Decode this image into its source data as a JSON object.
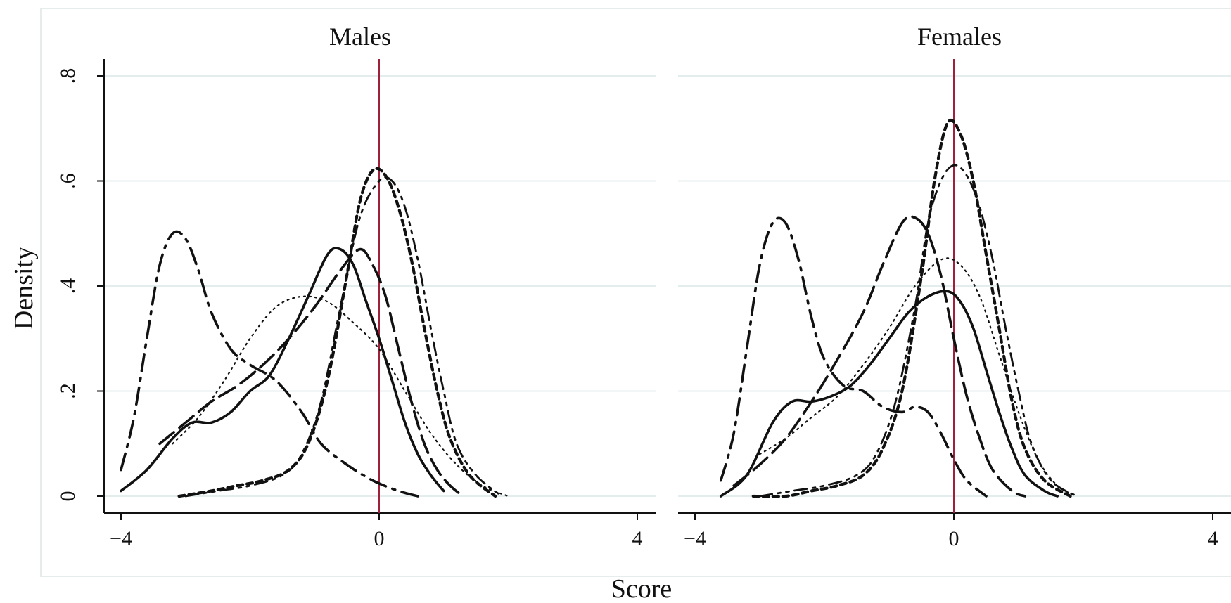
{
  "chart_data": {
    "type": "line",
    "xlabel": "Score",
    "ylabel": "Density",
    "xlim": [
      -4,
      4
    ],
    "ylim": [
      0,
      0.8
    ],
    "xticks": [
      -4,
      0,
      4
    ],
    "xtick_labels": [
      "−4",
      "0",
      "4"
    ],
    "yticks": [
      0,
      0.2,
      0.4,
      0.6,
      0.8
    ],
    "ytick_labels": [
      "0",
      ".2",
      ".4",
      ".6",
      ".8"
    ],
    "grid": true,
    "reference_line": {
      "x": 0,
      "color": "#a0203c"
    },
    "panels": [
      {
        "title": "Males",
        "series": [
          {
            "style": "dashdot",
            "points": [
              [
                -4.0,
                0.05
              ],
              [
                -3.8,
                0.15
              ],
              [
                -3.6,
                0.3
              ],
              [
                -3.4,
                0.44
              ],
              [
                -3.2,
                0.5
              ],
              [
                -3.0,
                0.49
              ],
              [
                -2.8,
                0.43
              ],
              [
                -2.6,
                0.35
              ],
              [
                -2.3,
                0.28
              ],
              [
                -2.0,
                0.25
              ],
              [
                -1.6,
                0.22
              ],
              [
                -1.2,
                0.16
              ],
              [
                -0.9,
                0.1
              ],
              [
                -0.5,
                0.06
              ],
              [
                -0.1,
                0.03
              ],
              [
                0.3,
                0.01
              ],
              [
                0.6,
                0.0
              ]
            ]
          },
          {
            "style": "solid",
            "points": [
              [
                -4.0,
                0.01
              ],
              [
                -3.6,
                0.05
              ],
              [
                -3.2,
                0.11
              ],
              [
                -2.9,
                0.14
              ],
              [
                -2.6,
                0.14
              ],
              [
                -2.3,
                0.16
              ],
              [
                -2.0,
                0.2
              ],
              [
                -1.7,
                0.23
              ],
              [
                -1.4,
                0.3
              ],
              [
                -1.1,
                0.38
              ],
              [
                -0.8,
                0.46
              ],
              [
                -0.6,
                0.47
              ],
              [
                -0.4,
                0.44
              ],
              [
                -0.2,
                0.37
              ],
              [
                0.0,
                0.3
              ],
              [
                0.2,
                0.22
              ],
              [
                0.4,
                0.14
              ],
              [
                0.6,
                0.08
              ],
              [
                0.8,
                0.04
              ],
              [
                1.0,
                0.01
              ]
            ]
          },
          {
            "style": "longdash",
            "points": [
              [
                -3.4,
                0.1
              ],
              [
                -3.0,
                0.14
              ],
              [
                -2.6,
                0.18
              ],
              [
                -2.2,
                0.21
              ],
              [
                -1.8,
                0.25
              ],
              [
                -1.4,
                0.3
              ],
              [
                -1.0,
                0.36
              ],
              [
                -0.6,
                0.43
              ],
              [
                -0.3,
                0.47
              ],
              [
                -0.1,
                0.44
              ],
              [
                0.1,
                0.38
              ],
              [
                0.3,
                0.28
              ],
              [
                0.5,
                0.18
              ],
              [
                0.7,
                0.1
              ],
              [
                0.9,
                0.05
              ],
              [
                1.1,
                0.02
              ],
              [
                1.3,
                0.0
              ]
            ]
          },
          {
            "style": "dotted",
            "points": [
              [
                -3.2,
                0.1
              ],
              [
                -2.8,
                0.15
              ],
              [
                -2.4,
                0.22
              ],
              [
                -2.0,
                0.3
              ],
              [
                -1.6,
                0.36
              ],
              [
                -1.2,
                0.38
              ],
              [
                -0.8,
                0.37
              ],
              [
                -0.4,
                0.33
              ],
              [
                0.0,
                0.28
              ],
              [
                0.4,
                0.2
              ],
              [
                0.8,
                0.12
              ],
              [
                1.2,
                0.06
              ],
              [
                1.6,
                0.02
              ],
              [
                2.0,
                0.0
              ]
            ]
          },
          {
            "style": "shortdash",
            "points": [
              [
                -3.1,
                0.0
              ],
              [
                -2.6,
                0.01
              ],
              [
                -2.2,
                0.02
              ],
              [
                -1.8,
                0.03
              ],
              [
                -1.4,
                0.05
              ],
              [
                -1.1,
                0.1
              ],
              [
                -0.8,
                0.22
              ],
              [
                -0.5,
                0.42
              ],
              [
                -0.3,
                0.56
              ],
              [
                -0.1,
                0.62
              ],
              [
                0.1,
                0.61
              ],
              [
                0.3,
                0.55
              ],
              [
                0.5,
                0.45
              ],
              [
                0.7,
                0.32
              ],
              [
                0.9,
                0.2
              ],
              [
                1.1,
                0.11
              ],
              [
                1.4,
                0.04
              ],
              [
                1.8,
                0.0
              ]
            ]
          },
          {
            "style": "dashdotdot",
            "points": [
              [
                -3.0,
                0.0
              ],
              [
                -2.5,
                0.01
              ],
              [
                -2.0,
                0.02
              ],
              [
                -1.5,
                0.04
              ],
              [
                -1.2,
                0.08
              ],
              [
                -0.9,
                0.18
              ],
              [
                -0.6,
                0.36
              ],
              [
                -0.3,
                0.53
              ],
              [
                0.0,
                0.6
              ],
              [
                0.2,
                0.6
              ],
              [
                0.4,
                0.55
              ],
              [
                0.6,
                0.45
              ],
              [
                0.8,
                0.32
              ],
              [
                1.0,
                0.2
              ],
              [
                1.2,
                0.1
              ],
              [
                1.5,
                0.04
              ],
              [
                1.9,
                0.0
              ]
            ]
          }
        ]
      },
      {
        "title": "Females",
        "series": [
          {
            "style": "dashdot",
            "points": [
              [
                -3.6,
                0.03
              ],
              [
                -3.4,
                0.12
              ],
              [
                -3.2,
                0.28
              ],
              [
                -3.0,
                0.44
              ],
              [
                -2.8,
                0.52
              ],
              [
                -2.6,
                0.52
              ],
              [
                -2.4,
                0.45
              ],
              [
                -2.2,
                0.34
              ],
              [
                -2.0,
                0.26
              ],
              [
                -1.7,
                0.21
              ],
              [
                -1.4,
                0.2
              ],
              [
                -1.1,
                0.17
              ],
              [
                -0.8,
                0.16
              ],
              [
                -0.6,
                0.17
              ],
              [
                -0.4,
                0.16
              ],
              [
                -0.2,
                0.12
              ],
              [
                0.0,
                0.07
              ],
              [
                0.2,
                0.03
              ],
              [
                0.5,
                0.0
              ]
            ]
          },
          {
            "style": "longdash",
            "points": [
              [
                -3.4,
                0.02
              ],
              [
                -3.0,
                0.06
              ],
              [
                -2.6,
                0.11
              ],
              [
                -2.2,
                0.18
              ],
              [
                -1.8,
                0.26
              ],
              [
                -1.4,
                0.35
              ],
              [
                -1.1,
                0.44
              ],
              [
                -0.8,
                0.52
              ],
              [
                -0.6,
                0.53
              ],
              [
                -0.4,
                0.5
              ],
              [
                -0.2,
                0.42
              ],
              [
                0.0,
                0.3
              ],
              [
                0.2,
                0.19
              ],
              [
                0.4,
                0.11
              ],
              [
                0.6,
                0.05
              ],
              [
                0.9,
                0.01
              ],
              [
                1.1,
                0.0
              ]
            ]
          },
          {
            "style": "solid",
            "points": [
              [
                -3.6,
                0.0
              ],
              [
                -3.2,
                0.04
              ],
              [
                -2.8,
                0.14
              ],
              [
                -2.5,
                0.18
              ],
              [
                -2.2,
                0.18
              ],
              [
                -1.9,
                0.19
              ],
              [
                -1.6,
                0.21
              ],
              [
                -1.3,
                0.25
              ],
              [
                -1.0,
                0.3
              ],
              [
                -0.7,
                0.35
              ],
              [
                -0.4,
                0.38
              ],
              [
                -0.1,
                0.39
              ],
              [
                0.1,
                0.37
              ],
              [
                0.3,
                0.32
              ],
              [
                0.5,
                0.24
              ],
              [
                0.7,
                0.16
              ],
              [
                0.9,
                0.09
              ],
              [
                1.1,
                0.04
              ],
              [
                1.4,
                0.01
              ],
              [
                1.6,
                0.0
              ]
            ]
          },
          {
            "style": "dotted",
            "points": [
              [
                -3.0,
                0.08
              ],
              [
                -2.6,
                0.11
              ],
              [
                -2.2,
                0.15
              ],
              [
                -1.8,
                0.19
              ],
              [
                -1.4,
                0.25
              ],
              [
                -1.0,
                0.32
              ],
              [
                -0.6,
                0.4
              ],
              [
                -0.2,
                0.45
              ],
              [
                0.1,
                0.44
              ],
              [
                0.4,
                0.38
              ],
              [
                0.7,
                0.27
              ],
              [
                1.0,
                0.16
              ],
              [
                1.3,
                0.07
              ],
              [
                1.6,
                0.02
              ],
              [
                1.9,
                0.0
              ]
            ]
          },
          {
            "style": "shortdash",
            "points": [
              [
                -3.1,
                0.0
              ],
              [
                -2.6,
                0.0
              ],
              [
                -2.2,
                0.01
              ],
              [
                -1.8,
                0.02
              ],
              [
                -1.4,
                0.04
              ],
              [
                -1.1,
                0.09
              ],
              [
                -0.8,
                0.2
              ],
              [
                -0.5,
                0.42
              ],
              [
                -0.3,
                0.6
              ],
              [
                -0.1,
                0.71
              ],
              [
                0.1,
                0.69
              ],
              [
                0.3,
                0.6
              ],
              [
                0.5,
                0.46
              ],
              [
                0.7,
                0.32
              ],
              [
                0.9,
                0.18
              ],
              [
                1.1,
                0.09
              ],
              [
                1.4,
                0.03
              ],
              [
                1.8,
                0.0
              ]
            ]
          },
          {
            "style": "dashdotdot",
            "points": [
              [
                -3.0,
                0.0
              ],
              [
                -2.5,
                0.01
              ],
              [
                -2.0,
                0.02
              ],
              [
                -1.5,
                0.04
              ],
              [
                -1.2,
                0.08
              ],
              [
                -0.9,
                0.18
              ],
              [
                -0.6,
                0.36
              ],
              [
                -0.4,
                0.52
              ],
              [
                -0.2,
                0.6
              ],
              [
                0.0,
                0.63
              ],
              [
                0.2,
                0.61
              ],
              [
                0.4,
                0.55
              ],
              [
                0.6,
                0.45
              ],
              [
                0.8,
                0.32
              ],
              [
                1.0,
                0.2
              ],
              [
                1.2,
                0.1
              ],
              [
                1.5,
                0.03
              ],
              [
                1.9,
                0.0
              ]
            ]
          }
        ]
      }
    ]
  }
}
